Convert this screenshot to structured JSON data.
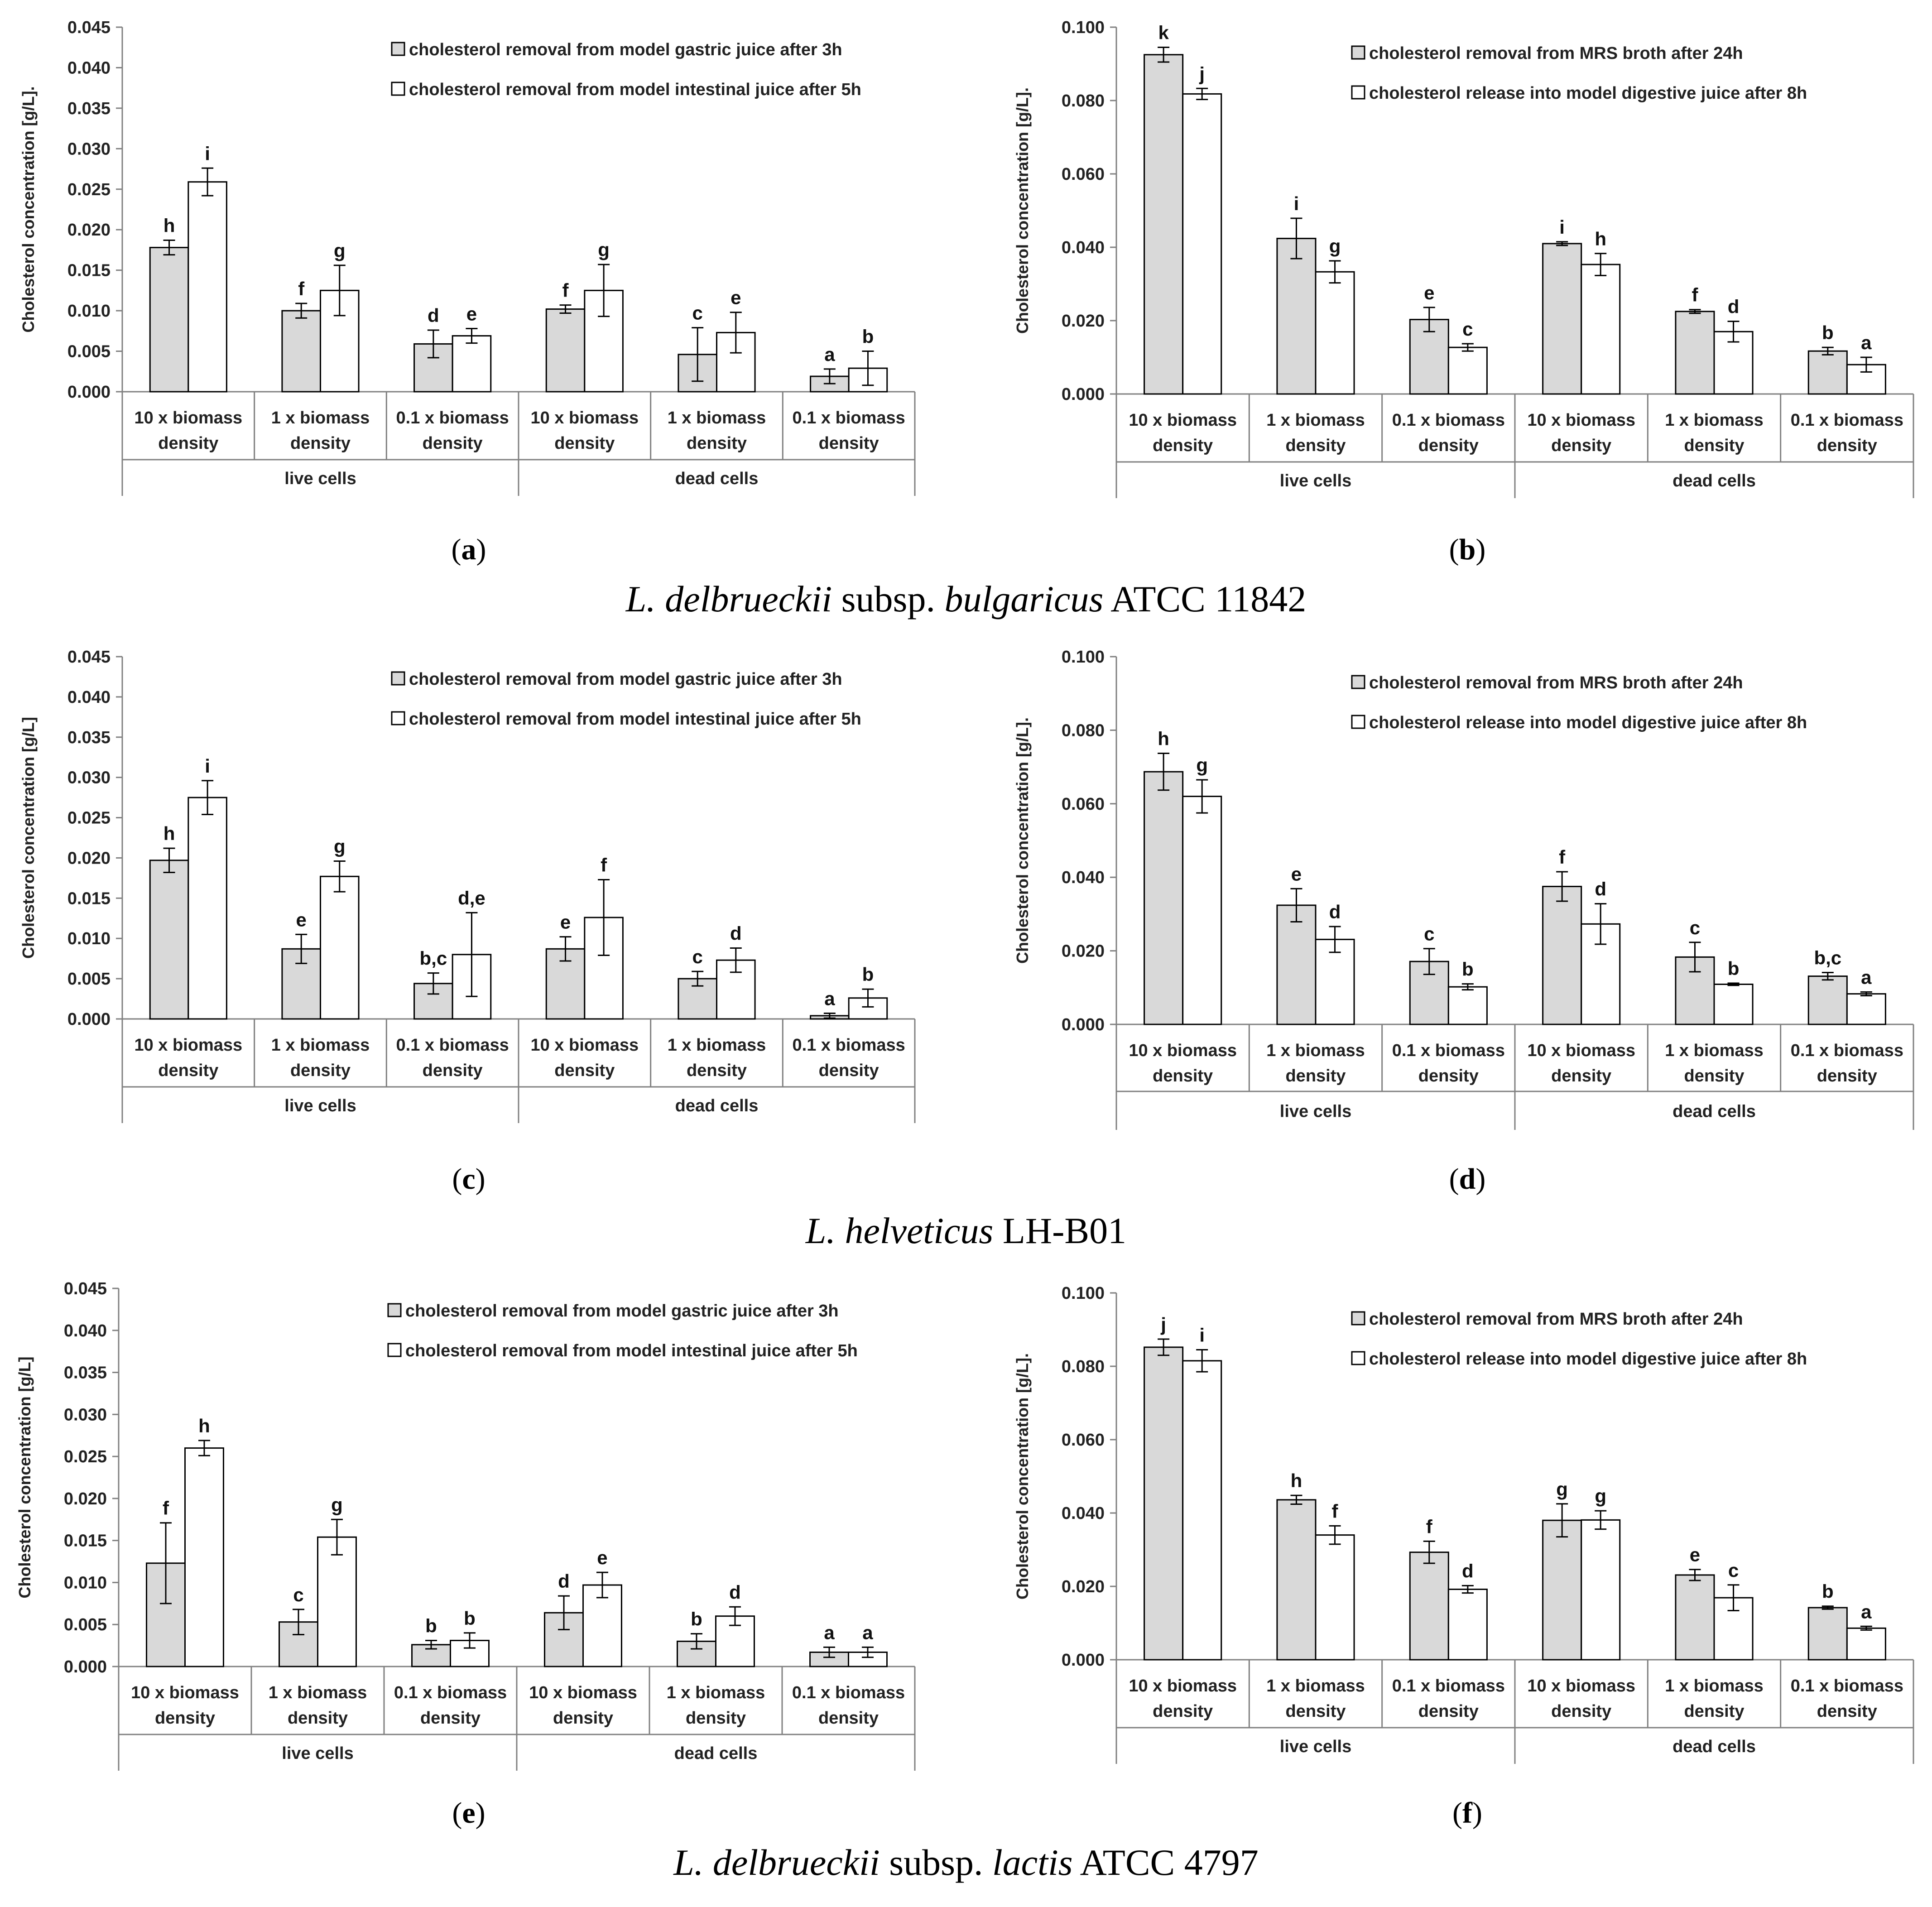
{
  "captions": [
    {
      "parts": [
        {
          "text": "L. delbrueckii",
          "italic": true
        },
        {
          "text": " subsp. ",
          "italic": false
        },
        {
          "text": "bulgaricus",
          "italic": true
        },
        {
          "text": " ATCC 11842",
          "italic": false
        }
      ]
    },
    {
      "parts": [
        {
          "text": "L. helveticus",
          "italic": true
        },
        {
          "text": " LH-B01",
          "italic": false
        }
      ]
    },
    {
      "parts": [
        {
          "text": "L. delbrueckii",
          "italic": true
        },
        {
          "text": " subsp. ",
          "italic": false
        },
        {
          "text": "lactis",
          "italic": true
        },
        {
          "text": " ATCC 4797",
          "italic": false
        }
      ]
    }
  ],
  "category_labels": [
    [
      "10 x biomass",
      "density"
    ],
    [
      "1 x biomass",
      "density"
    ],
    [
      "0.1 x biomass",
      "density"
    ],
    [
      "10 x biomass",
      "density"
    ],
    [
      "1 x biomass",
      "density"
    ],
    [
      "0.1 x biomass",
      "density"
    ]
  ],
  "group_labels": [
    "live cells",
    "dead cells"
  ],
  "chart_data": [
    {
      "panel": "a",
      "type": "bar",
      "ylabel": "Cholesterol concentration [g/L].",
      "ylim": [
        0,
        0.045
      ],
      "ytick_step": 0.005,
      "ytick_decimals": 3,
      "series": [
        {
          "name": "cholesterol removal from model gastric juice after 3h",
          "color": "#d9d9d9",
          "values": [
            0.0178,
            0.01,
            0.0059,
            0.0102,
            0.0046,
            0.0019
          ],
          "errors": [
            0.0009,
            0.0009,
            0.0017,
            0.0005,
            0.0033,
            0.0009
          ],
          "labels": [
            "h",
            "f",
            "d",
            "f",
            "c",
            "a"
          ]
        },
        {
          "name": "cholesterol removal from model intestinal juice after 5h",
          "color": "#ffffff",
          "values": [
            0.0259,
            0.0125,
            0.0069,
            0.0125,
            0.0073,
            0.0029
          ],
          "errors": [
            0.0017,
            0.0031,
            0.0009,
            0.0032,
            0.0025,
            0.0021
          ],
          "labels": [
            "i",
            "g",
            "e",
            "g",
            "e",
            "b"
          ]
        }
      ]
    },
    {
      "panel": "b",
      "type": "bar",
      "ylabel": "Cholesterol concentration [g/L].",
      "ylim": [
        0,
        0.1
      ],
      "ytick_step": 0.02,
      "ytick_decimals": 3,
      "series": [
        {
          "name": "cholesterol removal from MRS broth after 24h",
          "color": "#d9d9d9",
          "values": [
            0.0925,
            0.0424,
            0.0203,
            0.041,
            0.0225,
            0.0117
          ],
          "errors": [
            0.002,
            0.0055,
            0.0033,
            0.0005,
            0.0005,
            0.001
          ],
          "labels": [
            "k",
            "i",
            "e",
            "i",
            "f",
            "b"
          ]
        },
        {
          "name": "cholesterol release into model digestive juice after 8h",
          "color": "#ffffff",
          "values": [
            0.0818,
            0.0333,
            0.0127,
            0.0353,
            0.017,
            0.008
          ],
          "errors": [
            0.0015,
            0.003,
            0.001,
            0.003,
            0.0028,
            0.002
          ],
          "labels": [
            "j",
            "g",
            "c",
            "h",
            "d",
            "a"
          ]
        }
      ]
    },
    {
      "panel": "c",
      "type": "bar",
      "ylabel": "Cholesterol concentration [g/L]",
      "ylim": [
        0,
        0.045
      ],
      "ytick_step": 0.005,
      "ytick_decimals": 3,
      "series": [
        {
          "name": "cholesterol removal from model gastric juice after 3h",
          "color": "#d9d9d9",
          "values": [
            0.0197,
            0.0087,
            0.0044,
            0.0087,
            0.005,
            0.0004
          ],
          "errors": [
            0.0015,
            0.0018,
            0.0013,
            0.0015,
            0.0009,
            0.0003
          ],
          "labels": [
            "h",
            "e",
            "b,c",
            "e",
            "c",
            "a"
          ]
        },
        {
          "name": "cholesterol removal from model intestinal juice after 5h",
          "color": "#ffffff",
          "values": [
            0.0275,
            0.0177,
            0.008,
            0.0126,
            0.0073,
            0.0026
          ],
          "errors": [
            0.0021,
            0.0019,
            0.0052,
            0.0047,
            0.0015,
            0.0011
          ],
          "labels": [
            "i",
            "g",
            "d,e",
            "f",
            "d",
            "b"
          ]
        }
      ]
    },
    {
      "panel": "d",
      "type": "bar",
      "ylabel": "Cholesterol concentration [g/L].",
      "ylim": [
        0,
        0.1
      ],
      "ytick_step": 0.02,
      "ytick_decimals": 3,
      "series": [
        {
          "name": "cholesterol removal from MRS broth after 24h",
          "color": "#d9d9d9",
          "values": [
            0.0687,
            0.0324,
            0.0171,
            0.0375,
            0.0183,
            0.0131
          ],
          "errors": [
            0.005,
            0.0045,
            0.0035,
            0.004,
            0.004,
            0.001
          ],
          "labels": [
            "h",
            "e",
            "c",
            "f",
            "c",
            "b,c"
          ]
        },
        {
          "name": "cholesterol release into model digestive juice after 8h",
          "color": "#ffffff",
          "values": [
            0.062,
            0.0231,
            0.0102,
            0.0273,
            0.0109,
            0.0083
          ],
          "errors": [
            0.0045,
            0.0035,
            0.0008,
            0.0055,
            0.0003,
            0.0005
          ],
          "labels": [
            "g",
            "d",
            "b",
            "d",
            "b",
            "a"
          ]
        }
      ]
    },
    {
      "panel": "e",
      "type": "bar",
      "ylabel": "Cholesterol concentration [g/L]",
      "ylim": [
        0,
        0.045
      ],
      "ytick_step": 0.005,
      "ytick_decimals": 3,
      "series": [
        {
          "name": "cholesterol removal from model gastric juice after 3h",
          "color": "#d9d9d9",
          "values": [
            0.0123,
            0.0053,
            0.0026,
            0.0064,
            0.003,
            0.0017
          ],
          "errors": [
            0.0048,
            0.0015,
            0.0005,
            0.002,
            0.0009,
            0.0006
          ],
          "labels": [
            "f",
            "c",
            "b",
            "d",
            "b",
            "a"
          ]
        },
        {
          "name": "cholesterol removal from model intestinal juice after 5h",
          "color": "#ffffff",
          "values": [
            0.026,
            0.0154,
            0.0031,
            0.0097,
            0.006,
            0.0017
          ],
          "errors": [
            0.0009,
            0.0021,
            0.0009,
            0.0015,
            0.0011,
            0.0006
          ],
          "labels": [
            "h",
            "g",
            "b",
            "e",
            "d",
            "a"
          ]
        }
      ]
    },
    {
      "panel": "f",
      "type": "bar",
      "ylabel": "Cholesterol concentration [g/L].",
      "ylim": [
        0,
        0.1
      ],
      "ytick_step": 0.02,
      "ytick_decimals": 3,
      "series": [
        {
          "name": "cholesterol removal from MRS broth after 24h",
          "color": "#d9d9d9",
          "values": [
            0.0852,
            0.0436,
            0.0293,
            0.038,
            0.0231,
            0.0142
          ],
          "errors": [
            0.0022,
            0.0012,
            0.003,
            0.0045,
            0.0015,
            0.0004
          ],
          "labels": [
            "j",
            "h",
            "f",
            "g",
            "e",
            "b"
          ]
        },
        {
          "name": "cholesterol release into model digestive juice after 8h",
          "color": "#ffffff",
          "values": [
            0.0815,
            0.034,
            0.0192,
            0.0381,
            0.0169,
            0.0086
          ],
          "errors": [
            0.003,
            0.0025,
            0.001,
            0.0025,
            0.0035,
            0.0005
          ],
          "labels": [
            "i",
            "f",
            "d",
            "g",
            "c",
            "a"
          ]
        }
      ]
    }
  ]
}
